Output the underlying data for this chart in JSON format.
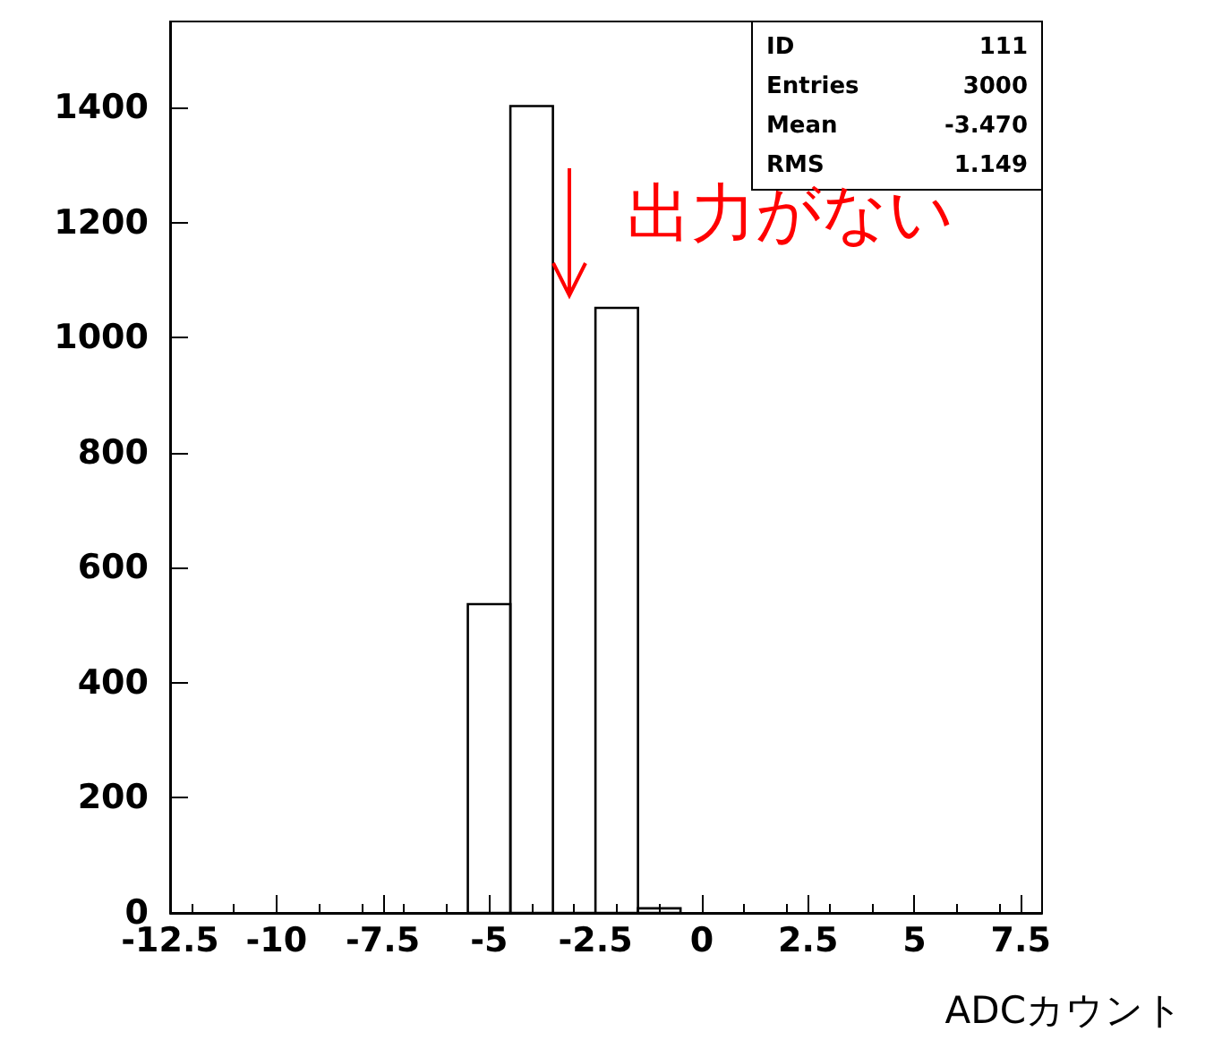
{
  "chart_data": {
    "type": "histogram",
    "bins": [
      -5.5,
      -4.5,
      -3.5,
      -2.5,
      -1.5,
      -0.5
    ],
    "values": [
      537,
      1403,
      0,
      1052,
      8
    ],
    "color": "#000000",
    "xlabel": "ADCカウント",
    "xlim": [
      -12.5,
      8.0
    ],
    "xticks": [
      -12.5,
      -10,
      -7.5,
      -5,
      -2.5,
      0,
      2.5,
      5,
      7.5
    ],
    "ylim": [
      0,
      1550
    ],
    "yticks": [
      0,
      200,
      400,
      600,
      800,
      1000,
      1200,
      1400
    ],
    "grid": false,
    "annotations": [
      "ID",
      "111",
      "Entries",
      "3000",
      "Mean",
      "-3.470",
      "RMS",
      "1.149",
      "出力がない"
    ]
  }
}
